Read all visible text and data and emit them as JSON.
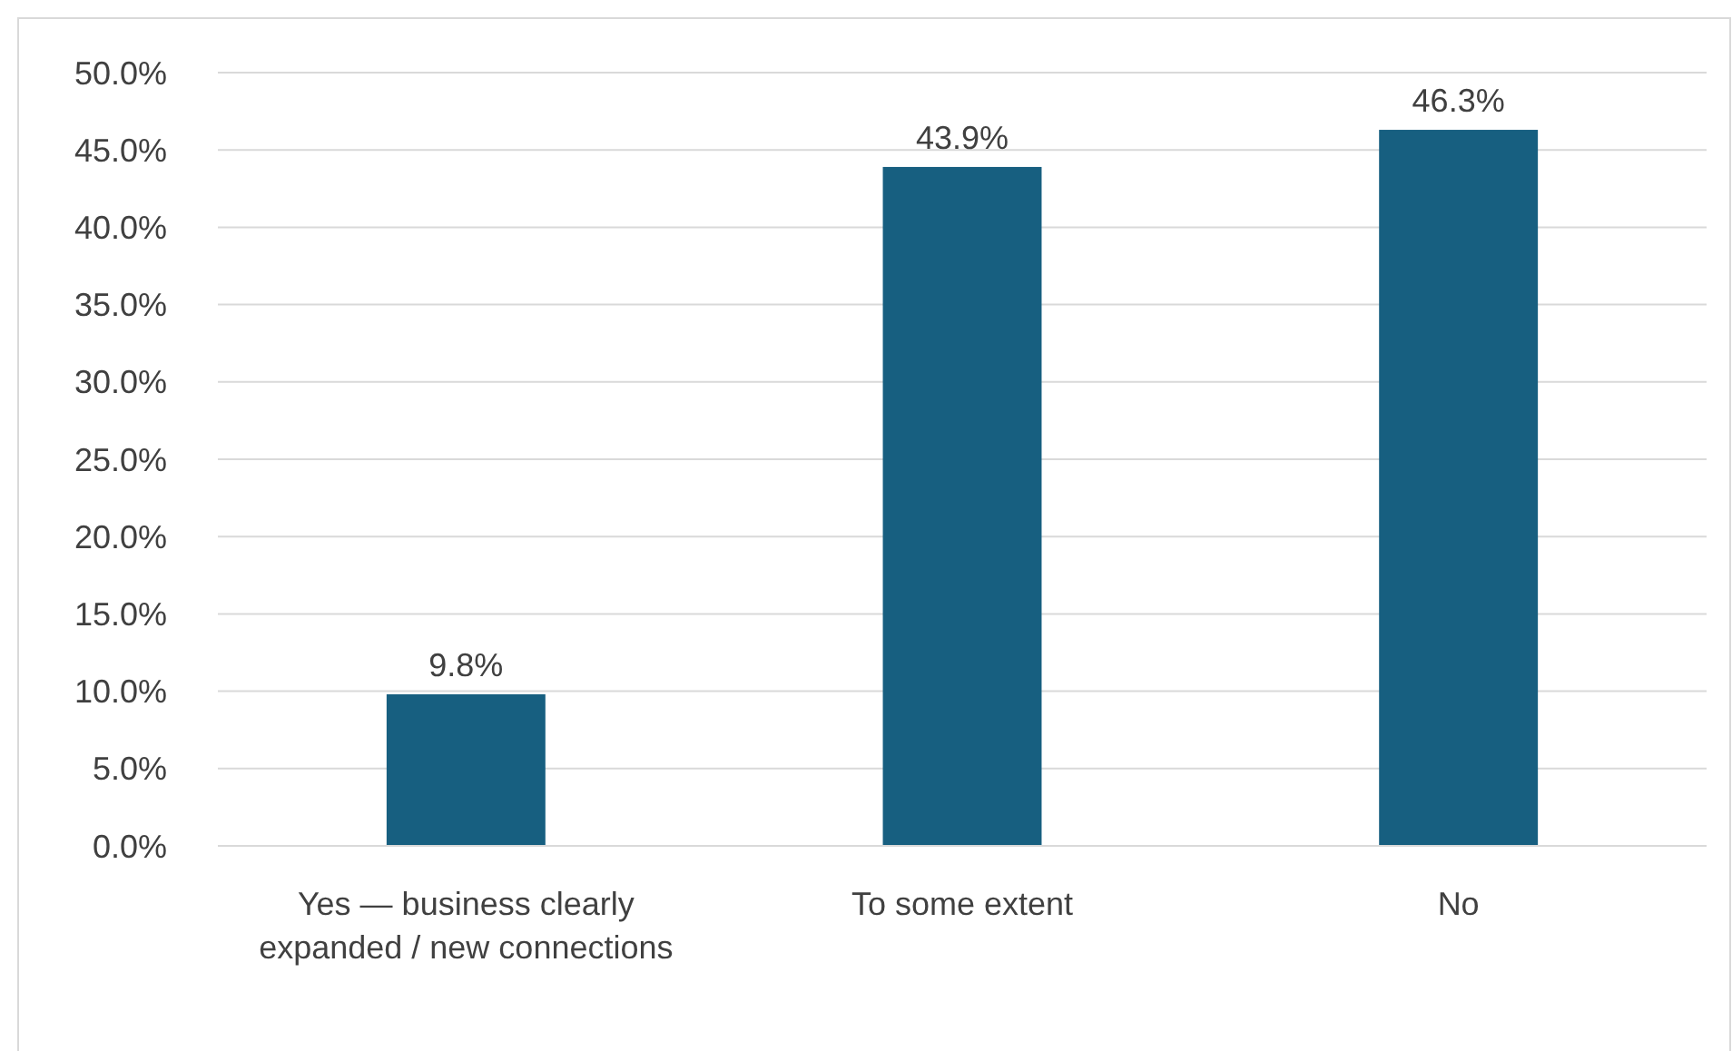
{
  "chart_data": {
    "type": "bar",
    "categories": [
      "Yes — business clearly expanded / new connections",
      "To some extent",
      "No"
    ],
    "values": [
      9.8,
      43.9,
      46.3
    ],
    "value_labels": [
      "9.8%",
      "43.9%",
      "46.3%"
    ],
    "color": "#175f80",
    "ylim": [
      0,
      50
    ],
    "yticks": [
      {
        "value": 0,
        "label": "0.0%"
      },
      {
        "value": 5,
        "label": "5.0%"
      },
      {
        "value": 10,
        "label": "10.0%"
      },
      {
        "value": 15,
        "label": "15.0%"
      },
      {
        "value": 20,
        "label": "20.0%"
      },
      {
        "value": 25,
        "label": "25.0%"
      },
      {
        "value": 30,
        "label": "30.0%"
      },
      {
        "value": 35,
        "label": "35.0%"
      },
      {
        "value": 40,
        "label": "40.0%"
      },
      {
        "value": 45,
        "label": "45.0%"
      },
      {
        "value": 50,
        "label": "50.0%"
      }
    ],
    "grid": "y"
  }
}
